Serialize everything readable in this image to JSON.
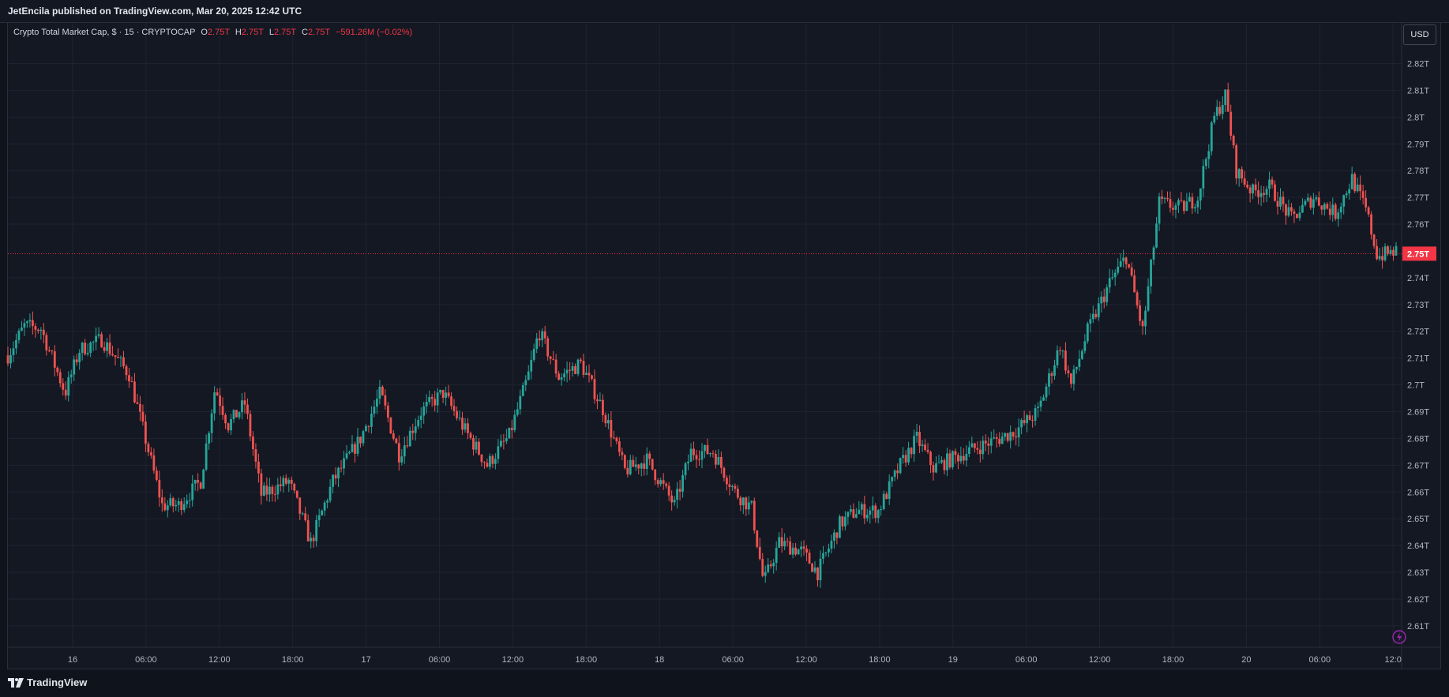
{
  "publish_line": "JetEncila published on TradingView.com, Mar 20, 2025 12:42 UTC",
  "legend": {
    "symbol": "Crypto Total Market Cap, $ · 15 · CRYPTOCAP",
    "o_key": "O",
    "o_val": "2.75T",
    "h_key": "H",
    "h_val": "2.75T",
    "l_key": "L",
    "l_val": "2.75T",
    "c_key": "C",
    "c_val": "2.75T",
    "change": "−591.26M (−0.02%)"
  },
  "currency_button": "USD",
  "branding": "TradingView",
  "colors": {
    "up": "#26a69a",
    "down": "#ef5350",
    "grid": "#1f2330",
    "price_line": "#f23645",
    "price_label_bg": "#f23645"
  },
  "chart_data": {
    "type": "candlestick",
    "title": "Crypto Total Market Cap, $ · 15 · CRYPTOCAP",
    "y_unit": "T USD",
    "ylim": [
      2.602,
      2.829
    ],
    "y_ticks": [
      {
        "value": 2.82,
        "label": "2.82T"
      },
      {
        "value": 2.81,
        "label": "2.81T"
      },
      {
        "value": 2.8,
        "label": "2.8T"
      },
      {
        "value": 2.79,
        "label": "2.79T"
      },
      {
        "value": 2.78,
        "label": "2.78T"
      },
      {
        "value": 2.77,
        "label": "2.77T"
      },
      {
        "value": 2.76,
        "label": "2.76T"
      },
      {
        "value": 2.74,
        "label": "2.74T"
      },
      {
        "value": 2.73,
        "label": "2.73T"
      },
      {
        "value": 2.72,
        "label": "2.72T"
      },
      {
        "value": 2.71,
        "label": "2.71T"
      },
      {
        "value": 2.7,
        "label": "2.7T"
      },
      {
        "value": 2.69,
        "label": "2.69T"
      },
      {
        "value": 2.68,
        "label": "2.68T"
      },
      {
        "value": 2.67,
        "label": "2.67T"
      },
      {
        "value": 2.66,
        "label": "2.66T"
      },
      {
        "value": 2.65,
        "label": "2.65T"
      },
      {
        "value": 2.64,
        "label": "2.64T"
      },
      {
        "value": 2.63,
        "label": "2.63T"
      },
      {
        "value": 2.62,
        "label": "2.62T"
      },
      {
        "value": 2.61,
        "label": "2.61T"
      }
    ],
    "last_price": {
      "value": 2.749,
      "label": "2.75T"
    },
    "x_hours_range": [
      -10.8,
      84.3
    ],
    "x_ticks": [
      {
        "hours": 0,
        "label": "16"
      },
      {
        "hours": 6,
        "label": "06:00"
      },
      {
        "hours": 12,
        "label": "12:00"
      },
      {
        "hours": 18,
        "label": "18:00"
      },
      {
        "hours": 24,
        "label": "17"
      },
      {
        "hours": 30,
        "label": "06:00"
      },
      {
        "hours": 36,
        "label": "12:00"
      },
      {
        "hours": 42,
        "label": "18:00"
      },
      {
        "hours": 48,
        "label": "18"
      },
      {
        "hours": 54,
        "label": "06:00"
      },
      {
        "hours": 60,
        "label": "12:00"
      },
      {
        "hours": 66,
        "label": "18:00"
      },
      {
        "hours": 72,
        "label": "19"
      },
      {
        "hours": 78,
        "label": "06:00"
      },
      {
        "hours": 84,
        "label": "12:00"
      },
      {
        "hours": 90,
        "label": "18:00"
      },
      {
        "hours": 96,
        "label": "20"
      },
      {
        "hours": 102,
        "label": "06:00"
      },
      {
        "hours": 108,
        "label": "12:0"
      }
    ],
    "path_note": "close-price keypoints used to generate 15-minute candles",
    "keypoints": [
      [
        0,
        2.711
      ],
      [
        1.5,
        2.722
      ],
      [
        3,
        2.721
      ],
      [
        5.2,
        2.697
      ],
      [
        6.5,
        2.713
      ],
      [
        8.5,
        2.717
      ],
      [
        11,
        2.704
      ],
      [
        14,
        2.655
      ],
      [
        15.5,
        2.655
      ],
      [
        17.5,
        2.664
      ],
      [
        18.8,
        2.699
      ],
      [
        20,
        2.685
      ],
      [
        21.5,
        2.693
      ],
      [
        23,
        2.659
      ],
      [
        25.5,
        2.664
      ],
      [
        27.5,
        2.641
      ],
      [
        29.5,
        2.664
      ],
      [
        32,
        2.68
      ],
      [
        33.8,
        2.697
      ],
      [
        35.5,
        2.674
      ],
      [
        37.5,
        2.69
      ],
      [
        39.5,
        2.697
      ],
      [
        41.5,
        2.683
      ],
      [
        43.5,
        2.67
      ],
      [
        45.5,
        2.681
      ],
      [
        47.2,
        2.703
      ],
      [
        48.2,
        2.72
      ],
      [
        50,
        2.703
      ],
      [
        52,
        2.708
      ],
      [
        54,
        2.691
      ],
      [
        56,
        2.668
      ],
      [
        58,
        2.672
      ],
      [
        60.5,
        2.655
      ],
      [
        62,
        2.675
      ],
      [
        64,
        2.675
      ],
      [
        66,
        2.66
      ],
      [
        67.5,
        2.654
      ],
      [
        68.6,
        2.626
      ],
      [
        70,
        2.641
      ],
      [
        72,
        2.638
      ],
      [
        73.5,
        2.63
      ],
      [
        75.5,
        2.648
      ],
      [
        77,
        2.653
      ],
      [
        79,
        2.653
      ],
      [
        81,
        2.67
      ],
      [
        82.5,
        2.68
      ],
      [
        84,
        2.669
      ],
      [
        87,
        2.675
      ],
      [
        90,
        2.68
      ],
      [
        91.5,
        2.683
      ],
      [
        93.5,
        2.69
      ],
      [
        95.5,
        2.715
      ],
      [
        96.5,
        2.7
      ],
      [
        98,
        2.72
      ],
      [
        100,
        2.738
      ],
      [
        101.5,
        2.748
      ],
      [
        103,
        2.72
      ],
      [
        104.5,
        2.768
      ],
      [
        106.5,
        2.766
      ],
      [
        108,
        2.77
      ],
      [
        109.5,
        2.8
      ],
      [
        110.5,
        2.808
      ],
      [
        111.5,
        2.78
      ],
      [
        113,
        2.772
      ],
      [
        114.5,
        2.774
      ],
      [
        116.5,
        2.762
      ],
      [
        118.5,
        2.77
      ],
      [
        120.5,
        2.764
      ],
      [
        122,
        2.777
      ],
      [
        123.3,
        2.765
      ],
      [
        124.3,
        2.748
      ],
      [
        126,
        2.75
      ]
    ],
    "keypoint_time_scale": "keypoint time units map linearly onto the date axis"
  }
}
